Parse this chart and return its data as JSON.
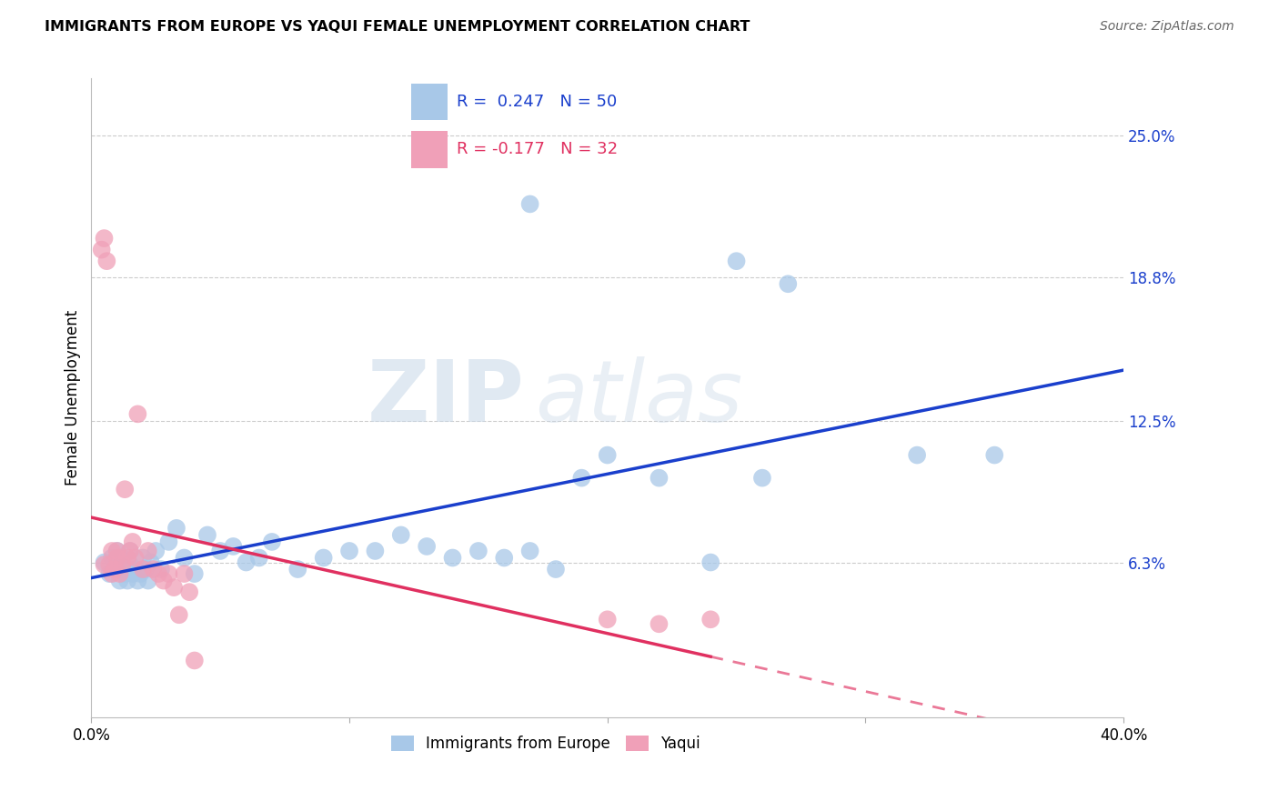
{
  "title": "IMMIGRANTS FROM EUROPE VS YAQUI FEMALE UNEMPLOYMENT CORRELATION CHART",
  "source": "Source: ZipAtlas.com",
  "ylabel": "Female Unemployment",
  "right_yticks": [
    "25.0%",
    "18.8%",
    "12.5%",
    "6.3%"
  ],
  "right_ytick_vals": [
    0.25,
    0.188,
    0.125,
    0.063
  ],
  "xlim": [
    0.0,
    0.4
  ],
  "ylim": [
    -0.005,
    0.275
  ],
  "blue_R": 0.247,
  "blue_N": 50,
  "pink_R": -0.177,
  "pink_N": 32,
  "blue_color": "#a8c8e8",
  "pink_color": "#f0a0b8",
  "blue_line_color": "#1a3fcc",
  "pink_line_color": "#e03060",
  "legend_blue_label": "Immigrants from Europe",
  "legend_pink_label": "Yaqui",
  "watermark_zip": "ZIP",
  "watermark_atlas": "atlas",
  "blue_scatter_x": [
    0.005,
    0.007,
    0.008,
    0.009,
    0.01,
    0.01,
    0.011,
    0.012,
    0.012,
    0.013,
    0.014,
    0.015,
    0.015,
    0.016,
    0.017,
    0.018,
    0.019,
    0.02,
    0.021,
    0.022,
    0.023,
    0.025,
    0.027,
    0.03,
    0.033,
    0.036,
    0.04,
    0.045,
    0.05,
    0.055,
    0.06,
    0.065,
    0.07,
    0.08,
    0.09,
    0.1,
    0.11,
    0.12,
    0.13,
    0.14,
    0.15,
    0.16,
    0.17,
    0.18,
    0.19,
    0.2,
    0.22,
    0.24,
    0.26,
    0.35
  ],
  "blue_scatter_y": [
    0.063,
    0.058,
    0.065,
    0.06,
    0.062,
    0.068,
    0.055,
    0.06,
    0.065,
    0.058,
    0.055,
    0.062,
    0.068,
    0.058,
    0.06,
    0.055,
    0.058,
    0.065,
    0.06,
    0.055,
    0.063,
    0.068,
    0.06,
    0.072,
    0.078,
    0.065,
    0.058,
    0.075,
    0.068,
    0.07,
    0.063,
    0.065,
    0.072,
    0.06,
    0.065,
    0.068,
    0.068,
    0.075,
    0.07,
    0.065,
    0.068,
    0.065,
    0.068,
    0.06,
    0.1,
    0.11,
    0.1,
    0.063,
    0.1,
    0.11
  ],
  "blue_scatter_y_outliers": [
    [
      0.17,
      0.22
    ],
    [
      0.25,
      0.195
    ],
    [
      0.27,
      0.185
    ],
    [
      0.32,
      0.11
    ]
  ],
  "pink_scatter_x": [
    0.004,
    0.005,
    0.005,
    0.006,
    0.007,
    0.008,
    0.008,
    0.009,
    0.01,
    0.01,
    0.011,
    0.012,
    0.013,
    0.014,
    0.015,
    0.016,
    0.017,
    0.018,
    0.02,
    0.022,
    0.024,
    0.026,
    0.028,
    0.03,
    0.032,
    0.034,
    0.036,
    0.038,
    0.04,
    0.2,
    0.22,
    0.24
  ],
  "pink_scatter_y": [
    0.2,
    0.205,
    0.062,
    0.195,
    0.062,
    0.058,
    0.068,
    0.06,
    0.065,
    0.068,
    0.058,
    0.062,
    0.095,
    0.065,
    0.068,
    0.072,
    0.065,
    0.128,
    0.06,
    0.068,
    0.06,
    0.058,
    0.055,
    0.058,
    0.052,
    0.04,
    0.058,
    0.05,
    0.02,
    0.038,
    0.036,
    0.038
  ]
}
